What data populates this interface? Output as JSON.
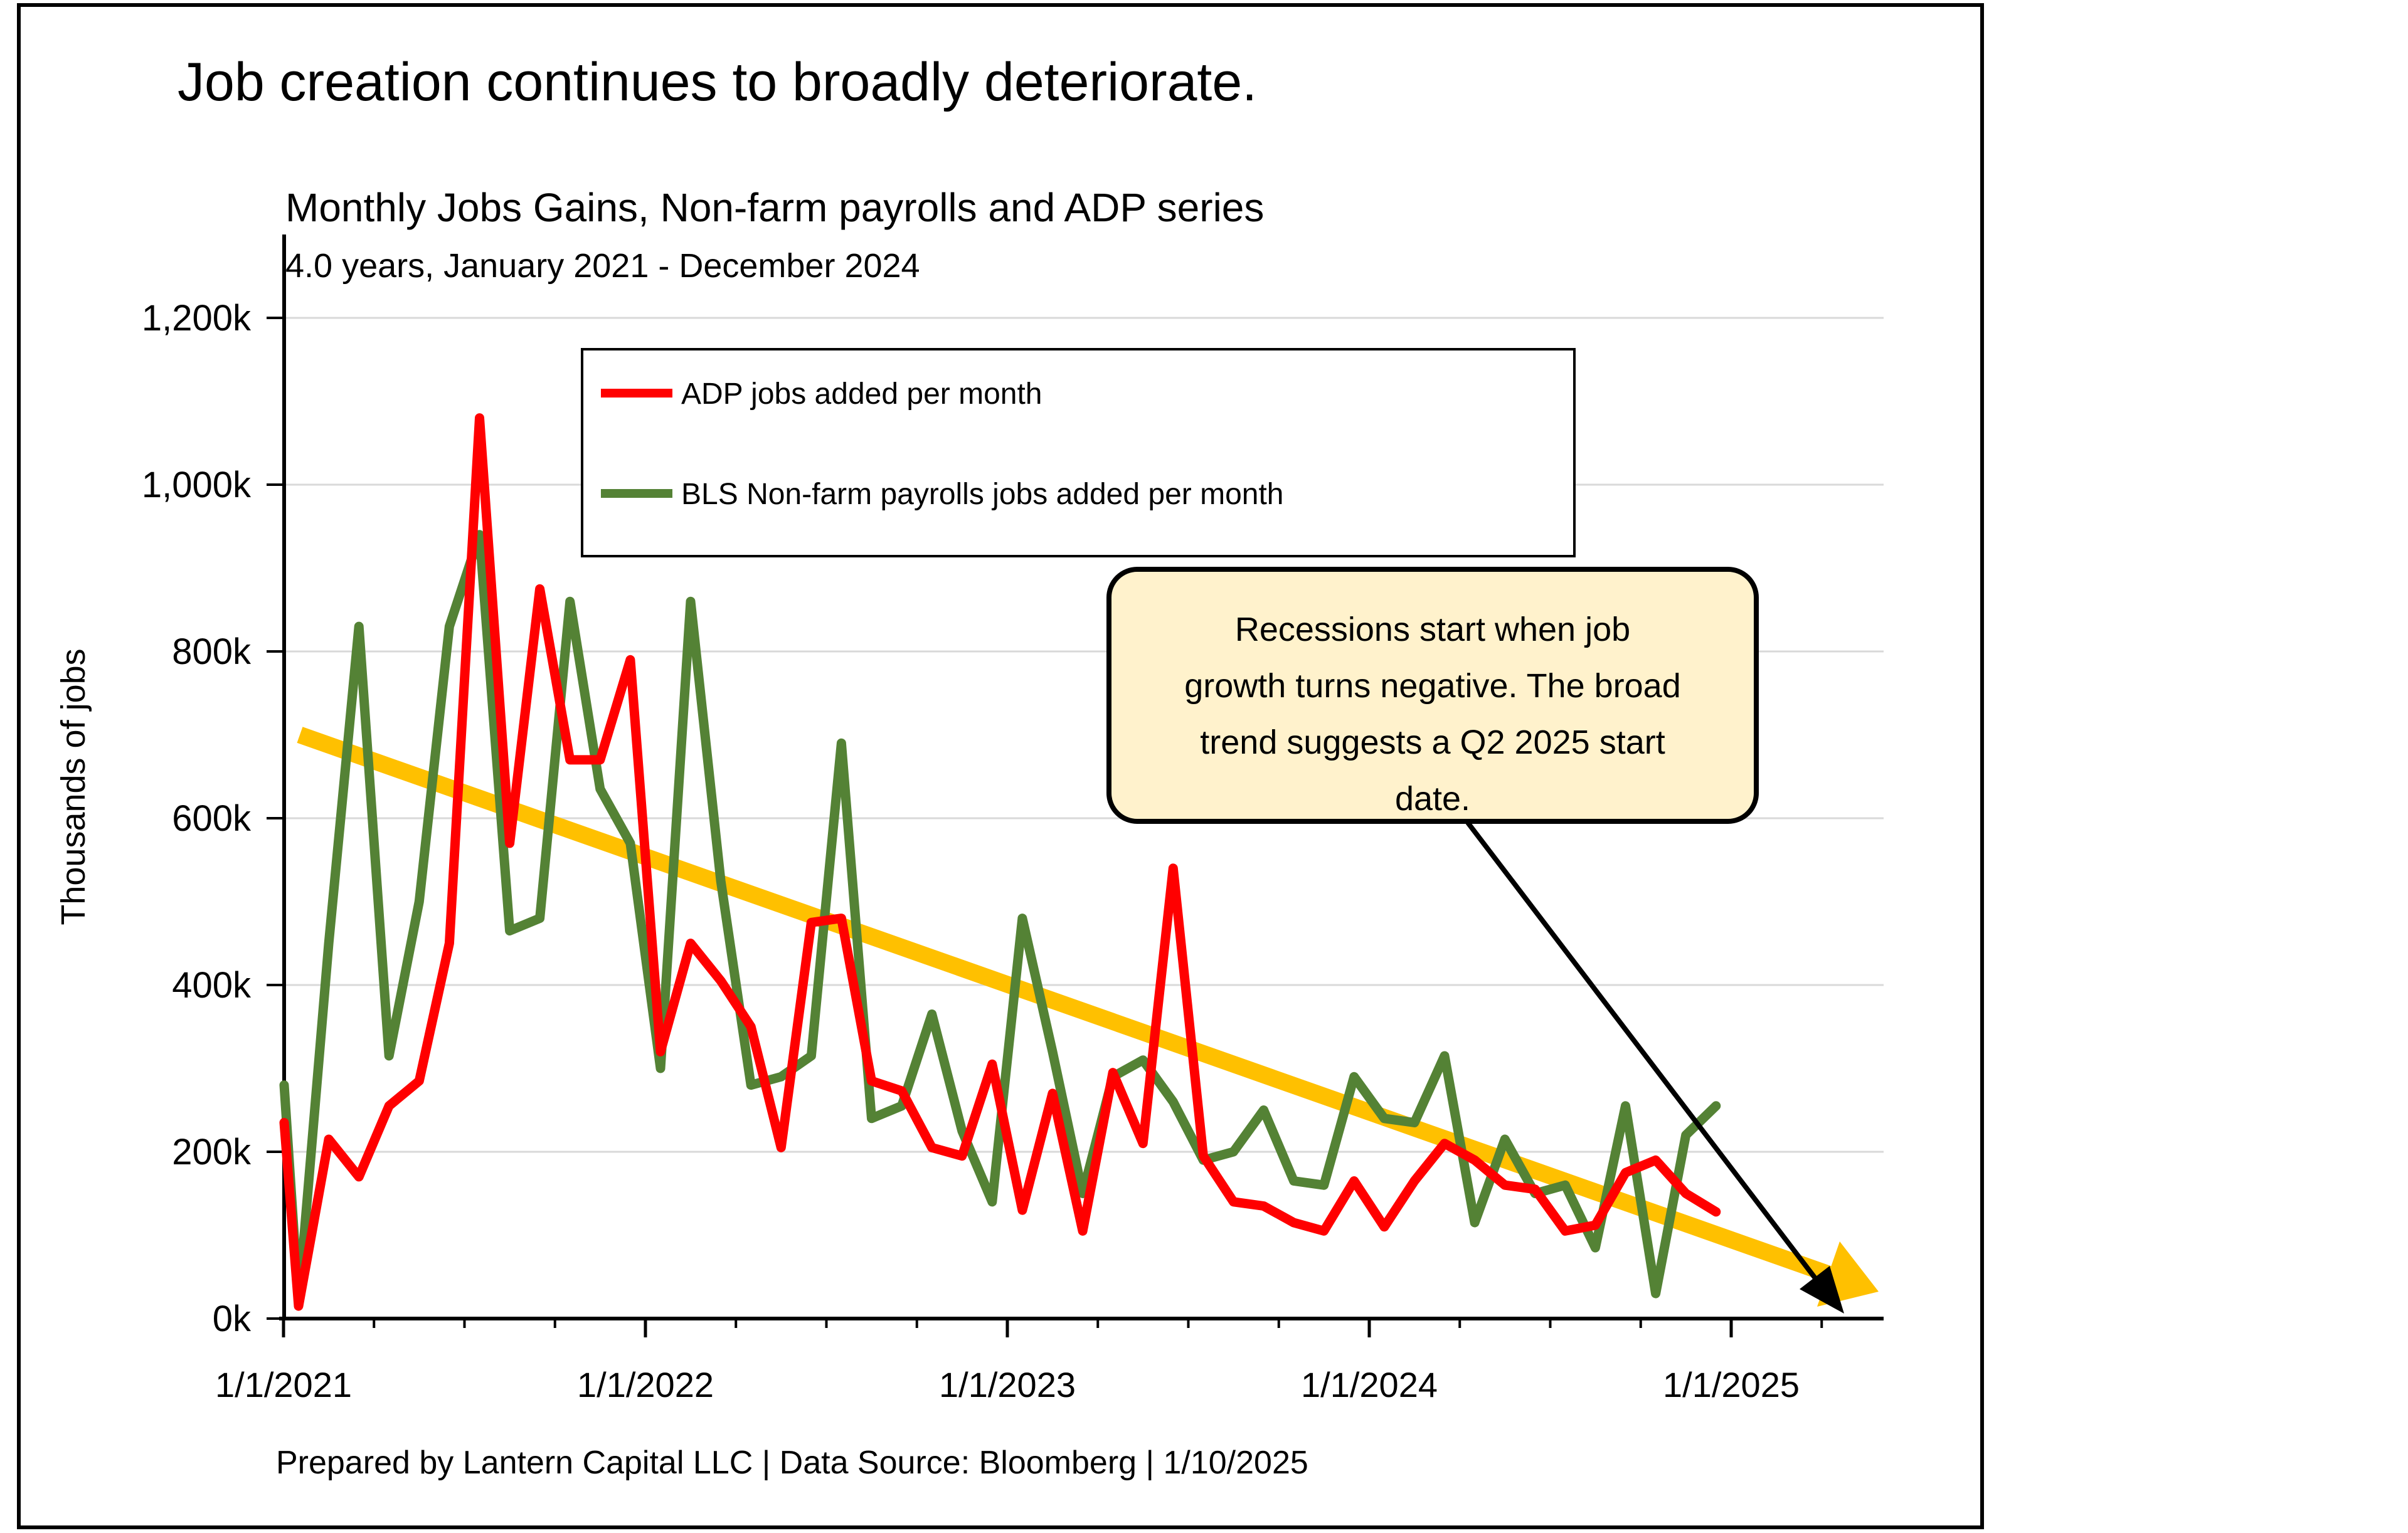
{
  "header": {
    "title": "Job creation continues to broadly deteriorate.",
    "subtitle": "Monthly Jobs Gains, Non-farm payrolls and ADP series",
    "period": "4.0 years, January 2021 - December 2024"
  },
  "footer": {
    "text": "Prepared by Lantern Capital LLC | Data Source: Bloomberg | 1/10/2025"
  },
  "annotation": {
    "lines": [
      "Recessions start when job",
      "growth turns negative. The broad",
      "trend suggests a Q2 2025 start",
      "date."
    ],
    "fill_color": "#FFF2CC",
    "border_color": "#000000"
  },
  "chart_data": {
    "type": "line",
    "title": "Monthly Jobs Gains, Non-farm payrolls and ADP series",
    "subtitle": "4.0 years, January 2021 - December 2024",
    "ylabel": "Thousands of jobs",
    "xlabel": "",
    "ylim": [
      0,
      1300
    ],
    "grid": "horizontal",
    "legend_position": "top-inside-box",
    "y_ticks": {
      "values": [
        0,
        200,
        400,
        600,
        800,
        1000,
        1200
      ],
      "labels": [
        "0k",
        "200k",
        "400k",
        "600k",
        "800k",
        "1,000k",
        "1,200k"
      ]
    },
    "x_tick_labels": [
      "1/1/2021",
      "1/1/2022",
      "1/1/2023",
      "1/1/2024",
      "1/1/2025"
    ],
    "x_minor_tick": "quarterly",
    "months": [
      "2021-01",
      "2021-02",
      "2021-03",
      "2021-04",
      "2021-05",
      "2021-06",
      "2021-07",
      "2021-08",
      "2021-09",
      "2021-10",
      "2021-11",
      "2021-12",
      "2022-01",
      "2022-02",
      "2022-03",
      "2022-04",
      "2022-05",
      "2022-06",
      "2022-07",
      "2022-08",
      "2022-09",
      "2022-10",
      "2022-11",
      "2022-12",
      "2023-01",
      "2023-02",
      "2023-03",
      "2023-04",
      "2023-05",
      "2023-06",
      "2023-07",
      "2023-08",
      "2023-09",
      "2023-10",
      "2023-11",
      "2023-12",
      "2024-01",
      "2024-02",
      "2024-03",
      "2024-04",
      "2024-05",
      "2024-06",
      "2024-07",
      "2024-08",
      "2024-09",
      "2024-10",
      "2024-11",
      "2024-12"
    ],
    "series": [
      {
        "name": "ADP jobs added per month",
        "color": "#FF0000",
        "left_edge_clip_value": 235,
        "values": [
          15,
          215,
          170,
          255,
          285,
          450,
          1080,
          570,
          875,
          670,
          670,
          790,
          320,
          450,
          405,
          350,
          205,
          475,
          480,
          285,
          273,
          205,
          195,
          305,
          130,
          270,
          105,
          295,
          210,
          540,
          195,
          140,
          135,
          115,
          105,
          165,
          110,
          165,
          210,
          190,
          160,
          155,
          105,
          112,
          175,
          190,
          150,
          128
        ]
      },
      {
        "name": "BLS Non-farm payrolls jobs added per month",
        "color": "#548235",
        "left_edge_clip_value": 280,
        "values": [
          20,
          450,
          830,
          315,
          500,
          830,
          940,
          465,
          480,
          860,
          635,
          570,
          300,
          860,
          525,
          280,
          290,
          315,
          690,
          240,
          255,
          365,
          225,
          140,
          480,
          320,
          150,
          290,
          310,
          260,
          190,
          200,
          250,
          165,
          160,
          290,
          240,
          235,
          315,
          115,
          215,
          150,
          160,
          85,
          255,
          30,
          220,
          255
        ]
      }
    ],
    "trend_line": {
      "color": "#FFC000",
      "style": "straight-arrow",
      "start": {
        "month": "2021-01",
        "value": 700
      },
      "end": {
        "month": "2025-03",
        "value": 55
      }
    },
    "gridline_color": "#D9D9D9",
    "axis_color": "#000000"
  }
}
